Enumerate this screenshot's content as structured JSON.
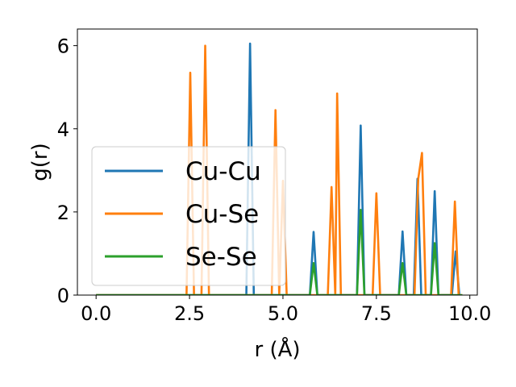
{
  "chart_data": {
    "type": "line",
    "xlabel": "r (Å)",
    "ylabel": "g(r)",
    "xlim": [
      -0.5,
      10.2
    ],
    "ylim": [
      0,
      6.4
    ],
    "x_ticks": [
      0.0,
      2.5,
      5.0,
      7.5,
      10.0
    ],
    "x_tick_labels": [
      "0.0",
      "2.5",
      "5.0",
      "7.5",
      "10.0"
    ],
    "y_ticks": [
      0,
      2,
      4,
      6
    ],
    "y_tick_labels": [
      "0",
      "2",
      "4",
      "6"
    ],
    "grid": false,
    "legend_position": "center-left",
    "series": [
      {
        "name": "Cu-Cu",
        "color": "#1f77b4",
        "x": [
          0.0,
          4.02,
          4.12,
          4.22,
          5.72,
          5.82,
          5.92,
          6.98,
          7.08,
          7.18,
          8.1,
          8.2,
          8.3,
          8.5,
          8.6,
          8.7,
          8.96,
          9.06,
          9.16,
          9.52,
          9.62,
          9.72
        ],
        "y": [
          0,
          0,
          6.05,
          0,
          0,
          1.52,
          0,
          0,
          4.08,
          0,
          0,
          1.53,
          0,
          0,
          2.8,
          0,
          0,
          2.5,
          0,
          0,
          1.05,
          0
        ]
      },
      {
        "name": "Cu-Se",
        "color": "#ff7f0e",
        "x": [
          0.0,
          2.42,
          2.52,
          2.62,
          2.82,
          2.92,
          3.02,
          4.7,
          4.8,
          4.9,
          5.0,
          5.1,
          6.2,
          6.3,
          6.4,
          6.45,
          6.55,
          7.4,
          7.5,
          7.6,
          8.52,
          8.62,
          8.72,
          8.82,
          9.5,
          9.6,
          9.7,
          9.8
        ],
        "y": [
          0,
          0,
          5.35,
          0,
          0,
          6.0,
          0,
          0,
          4.45,
          0,
          2.75,
          0,
          0,
          2.6,
          0,
          4.85,
          0,
          0,
          2.45,
          0,
          0,
          2.8,
          3.42,
          0,
          0,
          2.25,
          0,
          0
        ]
      },
      {
        "name": "Se-Se",
        "color": "#2ca02c",
        "x": [
          0.0,
          5.72,
          5.82,
          5.92,
          6.98,
          7.08,
          7.18,
          8.1,
          8.2,
          8.3,
          8.96,
          9.06,
          9.16,
          9.8
        ],
        "y": [
          0,
          0,
          0.77,
          0,
          0,
          2.05,
          0,
          0,
          0.77,
          0,
          0,
          1.25,
          0,
          0
        ]
      }
    ]
  }
}
